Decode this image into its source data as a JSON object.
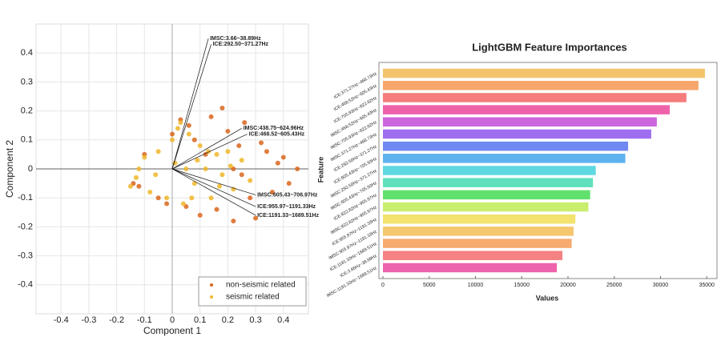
{
  "chart_data": [
    {
      "type": "scatter",
      "xlabel": "Component 1",
      "ylabel": "Component 2",
      "xlim": [
        -0.49,
        0.49
      ],
      "ylim": [
        -0.5,
        0.5
      ],
      "xticks": [
        -0.4,
        -0.3,
        -0.2,
        -0.1,
        0,
        0.1,
        0.2,
        0.3,
        0.4
      ],
      "yticks": [
        -0.4,
        -0.3,
        -0.2,
        -0.1,
        0,
        0.1,
        0.2,
        0.3,
        0.4
      ],
      "grid": true,
      "legend": "lower right",
      "series": [
        {
          "name": "non-seismic related",
          "color": "#d9661c",
          "x": [
            -0.14,
            -0.1,
            -0.05,
            0,
            0.03,
            0.06,
            0.1,
            0.14,
            0.18,
            0.22,
            0.26,
            0.3,
            0.34,
            0.38,
            0.42,
            0.45,
            -0.12,
            -0.02,
            0.05,
            0.08,
            0.12,
            0.16,
            0.2,
            0.24,
            0.28,
            0.32,
            0.36,
            0.4,
            0.22,
            0.25
          ],
          "y": [
            -0.05,
            0.05,
            -0.1,
            0.12,
            0.17,
            0.15,
            -0.16,
            0.18,
            0.21,
            -0.18,
            0.16,
            -0.17,
            0.06,
            0.02,
            -0.05,
            0.0,
            -0.06,
            -0.12,
            -0.13,
            0.1,
            0.05,
            -0.14,
            0.13,
            0.08,
            -0.1,
            0.09,
            -0.08,
            0.04,
            0.0,
            -0.02
          ]
        },
        {
          "name": "seismic related",
          "color": "#f0b62a",
          "x": [
            -0.15,
            -0.12,
            -0.1,
            -0.08,
            -0.05,
            -0.02,
            0,
            0.02,
            0.04,
            0.06,
            0.08,
            0.1,
            0.12,
            0.14,
            0.16,
            0.18,
            0.2,
            0.22,
            0.25,
            0.28,
            -0.13,
            -0.06,
            0.01,
            0.05,
            0.09,
            0.13,
            0.17,
            0.21,
            0.03,
            0.07
          ],
          "y": [
            -0.06,
            0.0,
            0.04,
            -0.08,
            0.06,
            -0.1,
            0.1,
            0.14,
            -0.12,
            0.12,
            -0.05,
            0.08,
            0.0,
            -0.1,
            0.05,
            -0.02,
            0.06,
            -0.07,
            0.03,
            -0.04,
            -0.03,
            -0.02,
            0.02,
            0.0,
            0.03,
            0.06,
            -0.06,
            0.01,
            0.16,
            -0.1
          ]
        }
      ],
      "loadings": [
        {
          "label": "IMSC:3.66~38.89Hz",
          "x": 0.13,
          "y": 0.45
        },
        {
          "label": "ICE:292.50~371.27Hz",
          "x": 0.14,
          "y": 0.43
        },
        {
          "label": "IMSC:438.75~624.96Hz",
          "x": 0.25,
          "y": 0.14
        },
        {
          "label": "ICE:468.52~605.43Hz",
          "x": 0.27,
          "y": 0.12
        },
        {
          "label": "IMSC:605.43~706.97Hz",
          "x": 0.3,
          "y": -0.09
        },
        {
          "label": "ICE:955.97~1191.33Hz",
          "x": 0.3,
          "y": -0.13
        },
        {
          "label": "ICE:1191.33~1689.51Hz",
          "x": 0.3,
          "y": -0.16
        }
      ]
    },
    {
      "type": "bar",
      "orientation": "horizontal",
      "title": "LightGBM Feature Importances",
      "xlabel": "Values",
      "ylabel": "Feature",
      "categories": [
        "ICE:371.27Hz~468.73Hz",
        "ICE:468.52Hz~605.43Hz",
        "ICE:705.93Hz~822.82Hz",
        "IMSC:468.52Hz~605.43Hz",
        "IMSC:705.93Hz~822.82Hz",
        "IMSC:371.27Hz~468.73Hz",
        "ICE:292.50Hz~371.27Hz",
        "ICE:605.43Hz~705.93Hz",
        "IMSC:292.50Hz~371.27Hz",
        "IMSC:605.43Hz~705.93Hz",
        "ICE:822.82Hz~955.97Hz",
        "IMSC:822.82Hz~955.97Hz",
        "ICE:955.97Hz~1191.33Hz",
        "IMSC:955.97Hz~1191.33Hz",
        "ICE:1191.33Hz~1689.51Hz",
        "ICE:3.66Hz~38.89Hz",
        "IMSC:1191.33Hz~1689.51Hz"
      ],
      "values": [
        34800,
        34100,
        32800,
        31000,
        29600,
        29000,
        26500,
        26200,
        23000,
        22700,
        22400,
        22200,
        20800,
        20600,
        20400,
        19400,
        18800
      ],
      "colors": [
        "#f4c46c",
        "#f6a66c",
        "#f47c7c",
        "#ee62aa",
        "#cc66dd",
        "#9f6ef0",
        "#6f88f2",
        "#5fb2f0",
        "#5fd8e2",
        "#5fe0bc",
        "#62e06e",
        "#c9ee6e",
        "#f3e26e",
        "#f4c66e",
        "#f6aa6e",
        "#f58282",
        "#ee64ac"
      ],
      "xlim": [
        0,
        35500
      ],
      "xticks": [
        0,
        5000,
        10000,
        15000,
        20000,
        25000,
        30000,
        35000
      ]
    }
  ]
}
